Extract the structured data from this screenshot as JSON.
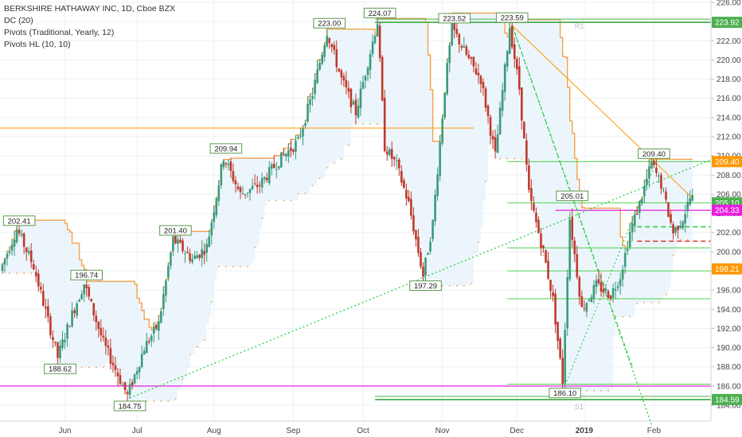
{
  "chart_data": {
    "type": "candlestick",
    "symbol_title": "BERKSHIRE HATHAWAY INC, 1D, Cboe BZX",
    "indicators": [
      "DC (20)",
      "Pivots (Traditional, Yearly, 12)",
      "Pivots HL (10, 10)"
    ],
    "ylim": [
      184,
      226
    ],
    "y_ticks": [
      "184.00",
      "186.00",
      "188.00",
      "190.00",
      "192.00",
      "194.00",
      "196.00",
      "198.00",
      "200.00",
      "202.00",
      "204.00",
      "206.00",
      "208.00",
      "210.00",
      "212.00",
      "214.00",
      "216.00",
      "218.00",
      "220.00",
      "222.00",
      "224.00",
      "226.00"
    ],
    "x_tick_labels": [
      "Jun",
      "Jul",
      "Aug",
      "Sep",
      "Oct",
      "Nov",
      "Dec",
      "2019",
      "Feb"
    ],
    "axis_badges": [
      {
        "value": 223.92,
        "label": "223.92",
        "color": "#4caf50"
      },
      {
        "value": 209.4,
        "label": "209.40",
        "color": "#ff9800"
      },
      {
        "value": 205.1,
        "label": "205.10",
        "color": "#4caf50"
      },
      {
        "value": 204.33,
        "label": "204.33",
        "color": "#e91ee0"
      },
      {
        "value": 198.21,
        "label": "198.21",
        "color": "#ff9800"
      },
      {
        "value": 184.59,
        "label": "184.59",
        "color": "#4caf50"
      }
    ],
    "pivot_labels": [
      {
        "label": "202.41",
        "bar": 7,
        "value": 202.41,
        "pos": "high"
      },
      {
        "label": "188.62",
        "bar": 24,
        "value": 188.62,
        "pos": "low"
      },
      {
        "label": "196.74",
        "bar": 35,
        "value": 196.74,
        "pos": "high"
      },
      {
        "label": "184.75",
        "bar": 53,
        "value": 184.75,
        "pos": "low"
      },
      {
        "label": "201.40",
        "bar": 72,
        "value": 201.4,
        "pos": "high"
      },
      {
        "label": "209.94",
        "bar": 93,
        "value": 209.94,
        "pos": "high"
      },
      {
        "label": "223.00",
        "bar": 136,
        "value": 223.0,
        "pos": "high"
      },
      {
        "label": "224.07",
        "bar": 157,
        "value": 224.07,
        "pos": "high"
      },
      {
        "label": "197.29",
        "bar": 176,
        "value": 197.29,
        "pos": "low"
      },
      {
        "label": "223.52",
        "bar": 188,
        "value": 223.52,
        "pos": "high"
      },
      {
        "label": "223.59",
        "bar": 212,
        "value": 223.59,
        "pos": "high"
      },
      {
        "label": "205.01",
        "bar": 237,
        "value": 205.01,
        "pos": "high"
      },
      {
        "label": "186.10",
        "bar": 234,
        "value": 186.1,
        "pos": "low"
      },
      {
        "label": "209.40",
        "bar": 271,
        "value": 209.4,
        "pos": "high"
      }
    ],
    "pivot_levels": [
      {
        "label": "R1",
        "value": 223.92,
        "color": "#4caf50"
      },
      {
        "label": "S1",
        "value": 184.59,
        "color": "#4caf50"
      }
    ],
    "grid": true,
    "background_color": "#ffffff",
    "colors": {
      "up": "#3a9a7a",
      "down": "#c0392b",
      "channel_line": "#f5a14a",
      "channel_fill": "#e6f2fb",
      "trend_line": "#2ecc40",
      "support_resistance": "#49d149",
      "magenta": "#e91ee0"
    }
  }
}
